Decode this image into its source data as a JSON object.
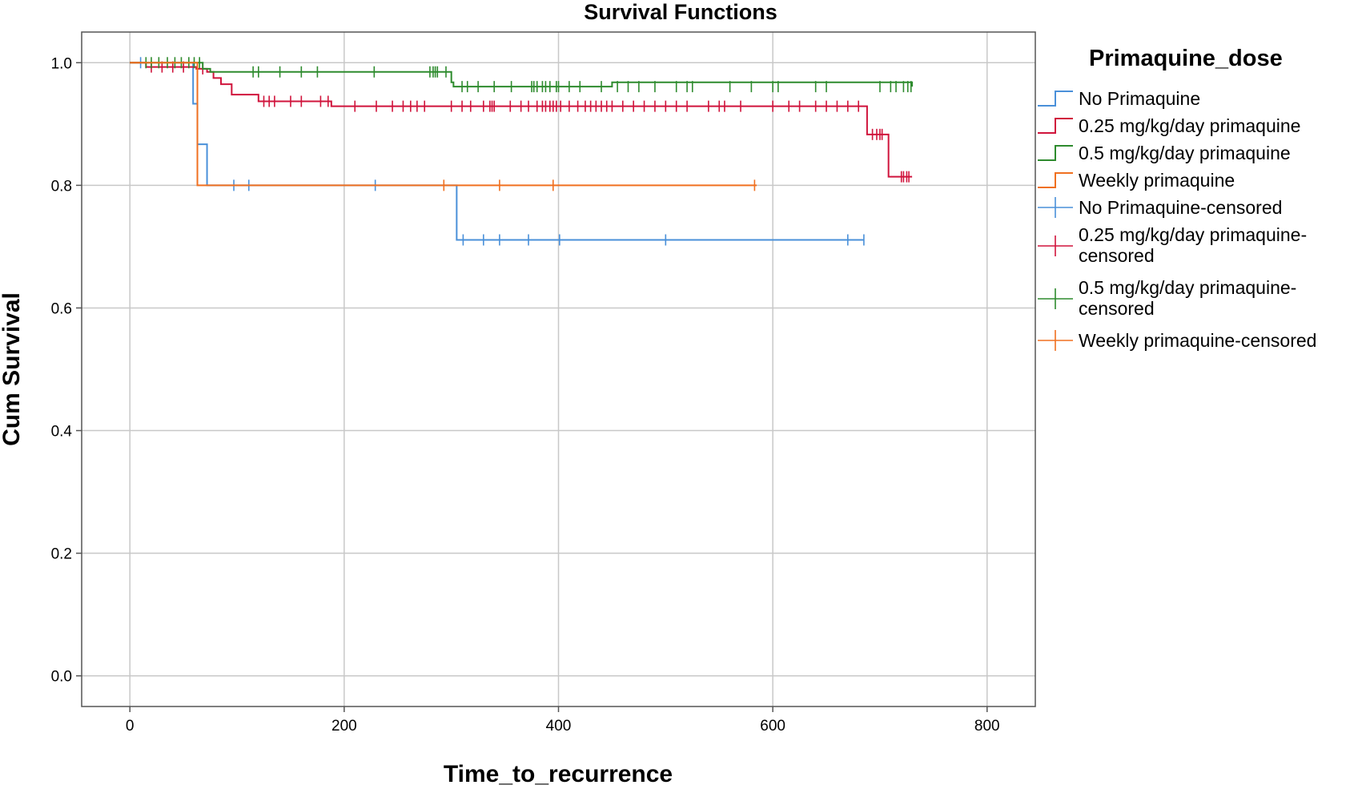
{
  "chart_data": {
    "type": "line",
    "subtype": "kaplan-meier",
    "title": "Survival Functions",
    "xlabel": "Time_to_recurrence",
    "ylabel": "Cum Survival",
    "xlim": [
      -45,
      845
    ],
    "ylim": [
      -0.05,
      1.05
    ],
    "xticks": [
      0,
      200,
      400,
      600,
      800
    ],
    "yticks": [
      0.0,
      0.2,
      0.4,
      0.6,
      0.8,
      1.0
    ],
    "xtick_labels": [
      "0",
      "200",
      "400",
      "600",
      "800"
    ],
    "ytick_labels": [
      "0.0",
      "0.2",
      "0.4",
      "0.6",
      "0.8",
      "1.0"
    ],
    "grid": true,
    "legend": {
      "title": "Primaquine_dose",
      "placement": "right",
      "entries": [
        {
          "label": "No Primaquine",
          "color": "#4a90d9",
          "kind": "step"
        },
        {
          "label": "0.25 mg/kg/day primaquine",
          "color": "#d0143c",
          "kind": "step"
        },
        {
          "label": "0.5 mg/kg/day primaquine",
          "color": "#2e8b2e",
          "kind": "step"
        },
        {
          "label": "Weekly primaquine",
          "color": "#f07020",
          "kind": "step"
        },
        {
          "label": "No Primaquine-censored",
          "color": "#4a90d9",
          "kind": "censor"
        },
        {
          "label": "0.25 mg/kg/day primaquine-censored",
          "line1": "0.25 mg/kg/day primaquine-",
          "line2": "censored",
          "color": "#d0143c",
          "kind": "censor"
        },
        {
          "label": "0.5 mg/kg/day primaquine-censored",
          "line1": "0.5 mg/kg/day primaquine-",
          "line2": "censored",
          "color": "#2e8b2e",
          "kind": "censor"
        },
        {
          "label": "Weekly primaquine-censored",
          "color": "#f07020",
          "kind": "censor"
        }
      ]
    },
    "series": [
      {
        "name": "No Primaquine",
        "color": "#4a90d9",
        "steps": [
          [
            0,
            1.0
          ],
          [
            59,
            0.933
          ],
          [
            63,
            0.867
          ],
          [
            72,
            0.8
          ],
          [
            305,
            0.711
          ],
          [
            685,
            0.711
          ]
        ],
        "censored": [
          [
            10,
            1.0
          ],
          [
            97,
            0.8
          ],
          [
            111,
            0.8
          ],
          [
            229,
            0.8
          ],
          [
            311,
            0.711
          ],
          [
            330,
            0.711
          ],
          [
            345,
            0.711
          ],
          [
            372,
            0.711
          ],
          [
            401,
            0.711
          ],
          [
            500,
            0.711
          ],
          [
            670,
            0.711
          ],
          [
            685,
            0.711
          ]
        ]
      },
      {
        "name": "0.25 mg/kg/day primaquine",
        "color": "#d0143c",
        "steps": [
          [
            0,
            1.0
          ],
          [
            15,
            0.993
          ],
          [
            62,
            0.99
          ],
          [
            72,
            0.985
          ],
          [
            78,
            0.975
          ],
          [
            85,
            0.965
          ],
          [
            95,
            0.948
          ],
          [
            120,
            0.937
          ],
          [
            188,
            0.929
          ],
          [
            685,
            0.929
          ],
          [
            688,
            0.883
          ],
          [
            705,
            0.883
          ],
          [
            708,
            0.814
          ],
          [
            730,
            0.814
          ]
        ],
        "censored": [
          [
            20,
            0.993
          ],
          [
            30,
            0.993
          ],
          [
            40,
            0.993
          ],
          [
            50,
            0.993
          ],
          [
            68,
            0.99
          ],
          [
            125,
            0.937
          ],
          [
            130,
            0.937
          ],
          [
            135,
            0.937
          ],
          [
            150,
            0.937
          ],
          [
            160,
            0.937
          ],
          [
            178,
            0.937
          ],
          [
            185,
            0.937
          ],
          [
            210,
            0.929
          ],
          [
            230,
            0.929
          ],
          [
            245,
            0.929
          ],
          [
            255,
            0.929
          ],
          [
            262,
            0.929
          ],
          [
            268,
            0.929
          ],
          [
            275,
            0.929
          ],
          [
            300,
            0.929
          ],
          [
            310,
            0.929
          ],
          [
            318,
            0.929
          ],
          [
            330,
            0.929
          ],
          [
            336,
            0.929
          ],
          [
            338,
            0.929
          ],
          [
            340,
            0.929
          ],
          [
            355,
            0.929
          ],
          [
            365,
            0.929
          ],
          [
            372,
            0.929
          ],
          [
            380,
            0.929
          ],
          [
            385,
            0.929
          ],
          [
            388,
            0.929
          ],
          [
            392,
            0.929
          ],
          [
            395,
            0.929
          ],
          [
            398,
            0.929
          ],
          [
            402,
            0.929
          ],
          [
            410,
            0.929
          ],
          [
            418,
            0.929
          ],
          [
            425,
            0.929
          ],
          [
            430,
            0.929
          ],
          [
            435,
            0.929
          ],
          [
            440,
            0.929
          ],
          [
            445,
            0.929
          ],
          [
            450,
            0.929
          ],
          [
            460,
            0.929
          ],
          [
            470,
            0.929
          ],
          [
            480,
            0.929
          ],
          [
            490,
            0.929
          ],
          [
            500,
            0.929
          ],
          [
            510,
            0.929
          ],
          [
            520,
            0.929
          ],
          [
            540,
            0.929
          ],
          [
            550,
            0.929
          ],
          [
            555,
            0.929
          ],
          [
            570,
            0.929
          ],
          [
            600,
            0.929
          ],
          [
            615,
            0.929
          ],
          [
            625,
            0.929
          ],
          [
            640,
            0.929
          ],
          [
            650,
            0.929
          ],
          [
            660,
            0.929
          ],
          [
            670,
            0.929
          ],
          [
            680,
            0.929
          ],
          [
            693,
            0.883
          ],
          [
            697,
            0.883
          ],
          [
            700,
            0.883
          ],
          [
            702,
            0.883
          ],
          [
            720,
            0.814
          ],
          [
            722,
            0.814
          ],
          [
            725,
            0.814
          ],
          [
            727,
            0.814
          ]
        ]
      },
      {
        "name": "0.5 mg/kg/day primaquine",
        "color": "#2e8b2e",
        "steps": [
          [
            0,
            1.0
          ],
          [
            68,
            0.99
          ],
          [
            75,
            0.985
          ],
          [
            300,
            0.985
          ],
          [
            302,
            0.968
          ],
          [
            450,
            0.968
          ],
          [
            300,
            0.968
          ],
          [
            302,
            0.961
          ],
          [
            730,
            0.961
          ]
        ],
        "censored": [
          [
            15,
            1.0
          ],
          [
            20,
            1.0
          ],
          [
            27,
            1.0
          ],
          [
            35,
            1.0
          ],
          [
            42,
            1.0
          ],
          [
            48,
            1.0
          ],
          [
            55,
            1.0
          ],
          [
            60,
            1.0
          ],
          [
            65,
            1.0
          ],
          [
            115,
            0.985
          ],
          [
            120,
            0.985
          ],
          [
            140,
            0.985
          ],
          [
            160,
            0.985
          ],
          [
            175,
            0.985
          ],
          [
            228,
            0.985
          ],
          [
            280,
            0.985
          ],
          [
            283,
            0.985
          ],
          [
            285,
            0.985
          ],
          [
            287,
            0.985
          ],
          [
            295,
            0.985
          ],
          [
            310,
            0.961
          ],
          [
            315,
            0.961
          ],
          [
            325,
            0.961
          ],
          [
            340,
            0.961
          ],
          [
            356,
            0.961
          ],
          [
            375,
            0.961
          ],
          [
            377,
            0.961
          ],
          [
            380,
            0.961
          ],
          [
            385,
            0.961
          ],
          [
            388,
            0.961
          ],
          [
            392,
            0.961
          ],
          [
            398,
            0.961
          ],
          [
            400,
            0.961
          ],
          [
            410,
            0.961
          ],
          [
            420,
            0.961
          ],
          [
            440,
            0.961
          ],
          [
            455,
            0.961
          ],
          [
            465,
            0.961
          ],
          [
            475,
            0.961
          ],
          [
            490,
            0.961
          ],
          [
            510,
            0.961
          ],
          [
            520,
            0.961
          ],
          [
            525,
            0.961
          ],
          [
            560,
            0.961
          ],
          [
            580,
            0.961
          ],
          [
            600,
            0.961
          ],
          [
            605,
            0.961
          ],
          [
            640,
            0.961
          ],
          [
            650,
            0.961
          ],
          [
            700,
            0.961
          ],
          [
            710,
            0.961
          ],
          [
            715,
            0.961
          ],
          [
            722,
            0.961
          ],
          [
            726,
            0.961
          ],
          [
            729,
            0.961
          ]
        ]
      },
      {
        "name": "Weekly primaquine",
        "color": "#f07020",
        "steps": [
          [
            0,
            1.0
          ],
          [
            63,
            0.8
          ],
          [
            585,
            0.8
          ]
        ],
        "censored": [
          [
            293,
            0.8
          ],
          [
            345,
            0.8
          ],
          [
            395,
            0.8
          ],
          [
            583,
            0.8
          ]
        ]
      }
    ]
  }
}
